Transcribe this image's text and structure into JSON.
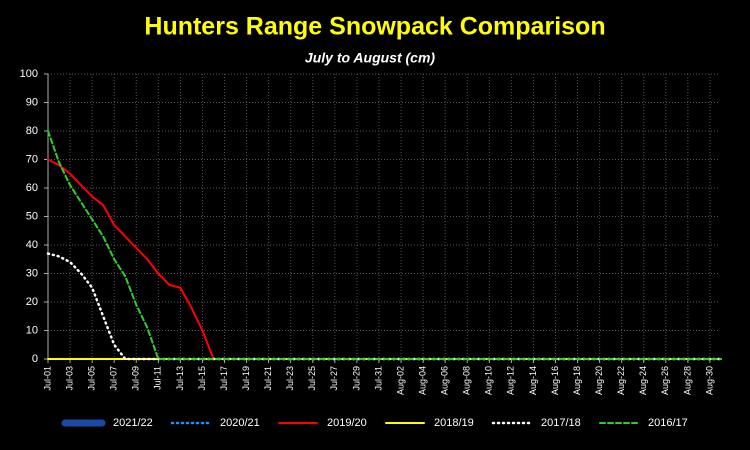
{
  "chart_data": {
    "type": "line",
    "title": "Hunters Range Snowpack Comparison",
    "subtitle": "July to August  (cm)",
    "categories": [
      "Jul-01",
      null,
      "Jul-03",
      null,
      "Jul-05",
      null,
      "Jul-07",
      null,
      "Jul-09",
      null,
      "Jul-11",
      null,
      "Jul-13",
      null,
      "Jul-15",
      null,
      "Jul-17",
      null,
      "Jul-19",
      null,
      "Jul-21",
      null,
      "Jul-23",
      null,
      "Jul-25",
      null,
      "Jul-27",
      null,
      "Jul-29",
      null,
      "Jul-31",
      null,
      "Aug-02",
      null,
      "Aug-04",
      null,
      "Aug-06",
      null,
      "Aug-08",
      null,
      "Aug-10",
      null,
      "Aug-12",
      null,
      "Aug-14",
      null,
      "Aug-16",
      null,
      "Aug-18",
      null,
      "Aug-20",
      null,
      "Aug-22",
      null,
      "Aug-24",
      null,
      "Aug-26",
      null,
      "Aug-28",
      null,
      "Aug-30",
      null
    ],
    "ylim": [
      0,
      100
    ],
    "yticks": [
      0,
      10,
      20,
      30,
      40,
      50,
      60,
      70,
      80,
      90,
      100
    ],
    "grid": true,
    "legend": "bottom",
    "series": [
      {
        "name": "2021/22",
        "color": "#1a4aa8",
        "style": "thick-dotted",
        "values": [
          null,
          null,
          null,
          null,
          null,
          null,
          null,
          null,
          null,
          null,
          null,
          null,
          null,
          null,
          null,
          null,
          null,
          null,
          null,
          null,
          null,
          null,
          null,
          null,
          null,
          null,
          null,
          null,
          null,
          null,
          null,
          null,
          null,
          null,
          null,
          null,
          null,
          null,
          null,
          null,
          null,
          null,
          null,
          null,
          null,
          null,
          null,
          null,
          null,
          null,
          null,
          null,
          null,
          null,
          null,
          null,
          null,
          null,
          null,
          null,
          null,
          null
        ]
      },
      {
        "name": "2020/21",
        "color": "#1e90ff",
        "style": "dotted",
        "values": [
          null,
          null,
          null,
          null,
          null,
          null,
          null,
          null,
          null,
          null,
          null,
          null,
          null,
          null,
          null,
          null,
          null,
          null,
          null,
          null,
          null,
          null,
          null,
          null,
          null,
          null,
          null,
          null,
          null,
          null,
          null,
          null,
          null,
          null,
          null,
          null,
          null,
          null,
          null,
          null,
          null,
          null,
          null,
          null,
          null,
          null,
          null,
          null,
          null,
          null,
          null,
          null,
          null,
          null,
          null,
          null,
          null,
          null,
          null,
          null,
          null,
          null
        ]
      },
      {
        "name": "2019/20",
        "color": "#ff0000",
        "style": "solid",
        "values": [
          70,
          68,
          65,
          61,
          57,
          54,
          47,
          43,
          39,
          35,
          30,
          26,
          25,
          18,
          10,
          0,
          0,
          0,
          0,
          0,
          0,
          0,
          0,
          0,
          0,
          0,
          0,
          0,
          0,
          0,
          0,
          0,
          0,
          0,
          0,
          0,
          0,
          0,
          0,
          0,
          0,
          0,
          0,
          0,
          0,
          0,
          0,
          0,
          0,
          0,
          0,
          0,
          0,
          0,
          0,
          0,
          0,
          0,
          0,
          0,
          0,
          0
        ]
      },
      {
        "name": "2018/19",
        "color": "#ffff00",
        "style": "solid",
        "values": [
          0,
          0,
          0,
          0,
          0,
          0,
          0,
          0,
          0,
          0,
          0,
          0,
          0,
          0,
          0,
          0,
          0,
          0,
          0,
          0,
          0,
          0,
          0,
          0,
          0,
          0,
          0,
          0,
          0,
          0,
          0,
          0,
          0,
          0,
          0,
          0,
          0,
          0,
          0,
          0,
          0,
          0,
          0,
          0,
          0,
          0,
          0,
          0,
          0,
          0,
          0,
          0,
          0,
          0,
          0,
          0,
          0,
          0,
          0,
          0,
          0,
          0
        ]
      },
      {
        "name": "2017/18",
        "color": "#ffffff",
        "style": "dotted",
        "values": [
          37,
          36,
          34,
          30,
          25,
          15,
          5,
          0,
          0,
          0,
          0,
          0,
          0,
          0,
          0,
          0,
          0,
          0,
          0,
          0,
          0,
          0,
          0,
          0,
          0,
          0,
          0,
          0,
          0,
          0,
          0,
          0,
          0,
          0,
          0,
          0,
          0,
          0,
          0,
          0,
          0,
          0,
          0,
          0,
          0,
          0,
          0,
          0,
          0,
          0,
          0,
          0,
          0,
          0,
          0,
          0,
          0,
          0,
          0,
          0,
          0,
          0
        ]
      },
      {
        "name": "2016/17",
        "color": "#33cc33",
        "style": "dashed",
        "values": [
          80,
          69,
          61,
          55,
          49,
          43,
          35,
          29,
          19,
          11,
          0,
          0,
          0,
          0,
          0,
          0,
          0,
          0,
          0,
          0,
          0,
          0,
          0,
          0,
          0,
          0,
          0,
          0,
          0,
          0,
          0,
          0,
          0,
          0,
          0,
          0,
          0,
          0,
          0,
          0,
          0,
          0,
          0,
          0,
          0,
          0,
          0,
          0,
          0,
          0,
          0,
          0,
          0,
          0,
          0,
          0,
          0,
          0,
          0,
          0,
          0,
          0
        ]
      }
    ]
  }
}
